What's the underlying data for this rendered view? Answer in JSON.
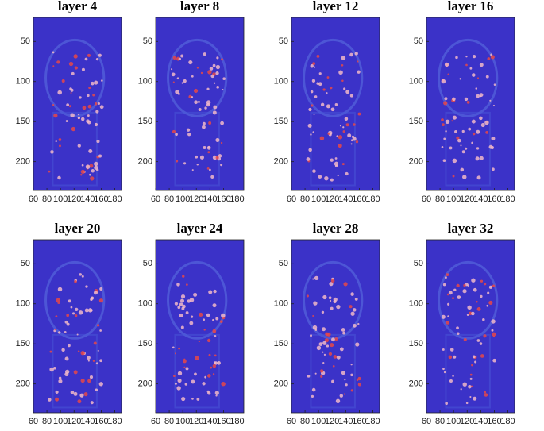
{
  "chart_data": [
    {
      "type": "image",
      "title": "layer 4",
      "xlim": [
        60,
        190
      ],
      "ylim": [
        20,
        236
      ],
      "y_direction": "reverse",
      "xticks": [
        60,
        80,
        100,
        120,
        140,
        160,
        180
      ],
      "yticks": [
        50,
        100,
        150,
        200
      ],
      "color": "#3b32c8"
    },
    {
      "type": "image",
      "title": "layer 8",
      "xlim": [
        60,
        190
      ],
      "ylim": [
        20,
        236
      ],
      "y_direction": "reverse",
      "xticks": [
        60,
        80,
        100,
        120,
        140,
        160,
        180
      ],
      "yticks": [
        50,
        100,
        150,
        200
      ],
      "color": "#3b32c8"
    },
    {
      "type": "image",
      "title": "layer 12",
      "xlim": [
        60,
        190
      ],
      "ylim": [
        20,
        236
      ],
      "y_direction": "reverse",
      "xticks": [
        60,
        80,
        100,
        120,
        140,
        160,
        180
      ],
      "yticks": [
        50,
        100,
        150,
        200
      ],
      "color": "#3b32c8"
    },
    {
      "type": "image",
      "title": "layer 16",
      "xlim": [
        60,
        190
      ],
      "ylim": [
        20,
        236
      ],
      "y_direction": "reverse",
      "xticks": [
        60,
        80,
        100,
        120,
        140,
        160,
        180
      ],
      "yticks": [
        50,
        100,
        150,
        200
      ],
      "color": "#3b32c8"
    },
    {
      "type": "image",
      "title": "layer 20",
      "xlim": [
        60,
        190
      ],
      "ylim": [
        20,
        236
      ],
      "y_direction": "reverse",
      "xticks": [
        60,
        80,
        100,
        120,
        140,
        160,
        180
      ],
      "yticks": [
        50,
        100,
        150,
        200
      ],
      "color": "#3b32c8"
    },
    {
      "type": "image",
      "title": "layer 24",
      "xlim": [
        60,
        190
      ],
      "ylim": [
        20,
        236
      ],
      "y_direction": "reverse",
      "xticks": [
        60,
        80,
        100,
        120,
        140,
        160,
        180
      ],
      "yticks": [
        50,
        100,
        150,
        200
      ],
      "color": "#3b32c8"
    },
    {
      "type": "image",
      "title": "layer 28",
      "xlim": [
        60,
        190
      ],
      "ylim": [
        20,
        236
      ],
      "y_direction": "reverse",
      "xticks": [
        60,
        80,
        100,
        120,
        140,
        160,
        180
      ],
      "yticks": [
        50,
        100,
        150,
        200
      ],
      "color": "#3b32c8"
    },
    {
      "type": "image",
      "title": "layer 32",
      "xlim": [
        60,
        190
      ],
      "ylim": [
        20,
        236
      ],
      "y_direction": "reverse",
      "xticks": [
        60,
        80,
        100,
        120,
        140,
        160,
        180
      ],
      "yticks": [
        50,
        100,
        150,
        200
      ],
      "color": "#3b32c8"
    }
  ]
}
